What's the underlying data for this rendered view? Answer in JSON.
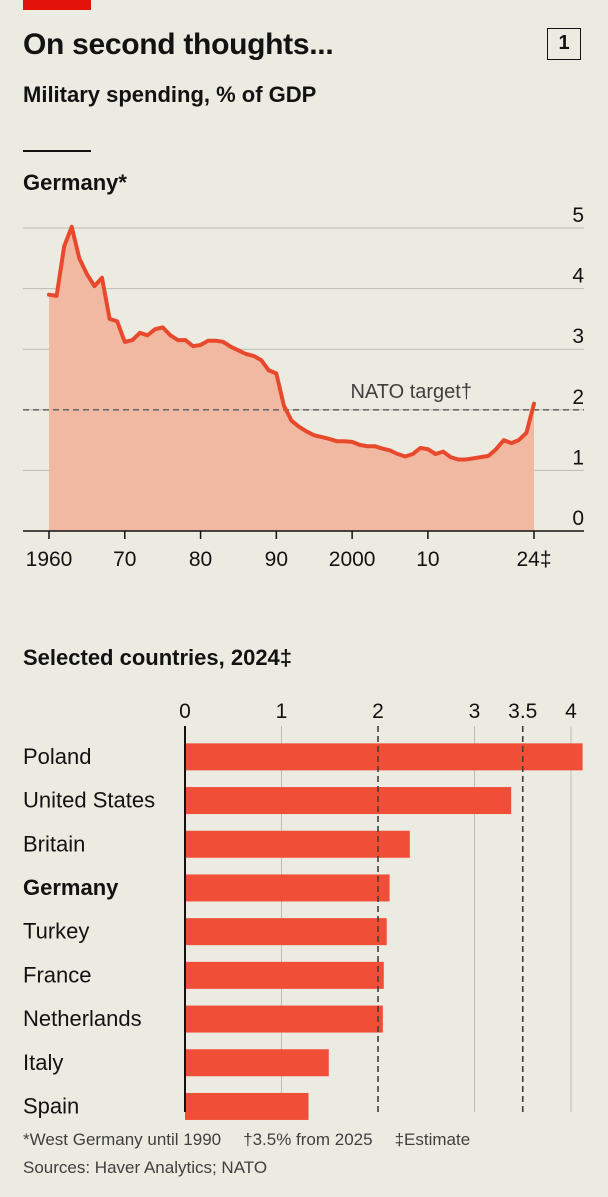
{
  "header": {
    "title": "On second thoughts...",
    "subtitle": "Military spending, % of GDP",
    "chart_number": "1"
  },
  "colors": {
    "line": "#e8492c",
    "area": "#f2b9a2",
    "bar": "#f04e37",
    "grid": "#bdbcb3",
    "brand": "#e3120b"
  },
  "chart_data": [
    {
      "type": "area",
      "title": "Germany*",
      "xlim": [
        1960,
        2024
      ],
      "ylim": [
        0,
        5
      ],
      "yticks": [
        "0",
        "1",
        "2",
        "3",
        "4",
        "5"
      ],
      "xticks": [
        {
          "value": 1960,
          "label": "1960"
        },
        {
          "value": 1970,
          "label": "70"
        },
        {
          "value": 1980,
          "label": "80"
        },
        {
          "value": 1990,
          "label": "90"
        },
        {
          "value": 2000,
          "label": "2000"
        },
        {
          "value": 2010,
          "label": "10"
        },
        {
          "value": 2024,
          "label": "24‡"
        }
      ],
      "reference_line": {
        "value": 2,
        "label": "NATO target†"
      },
      "grid": true,
      "x": [
        1960,
        1961,
        1962,
        1963,
        1964,
        1965,
        1966,
        1967,
        1968,
        1969,
        1970,
        1971,
        1972,
        1973,
        1974,
        1975,
        1976,
        1977,
        1978,
        1979,
        1980,
        1981,
        1982,
        1983,
        1984,
        1985,
        1986,
        1987,
        1988,
        1989,
        1990,
        1991,
        1992,
        1993,
        1994,
        1995,
        1996,
        1997,
        1998,
        1999,
        2000,
        2001,
        2002,
        2003,
        2004,
        2005,
        2006,
        2007,
        2008,
        2009,
        2010,
        2011,
        2012,
        2013,
        2014,
        2015,
        2016,
        2017,
        2018,
        2019,
        2020,
        2021,
        2022,
        2023,
        2024
      ],
      "values": [
        3.9,
        3.88,
        4.7,
        5.02,
        4.5,
        4.24,
        4.04,
        4.18,
        3.5,
        3.46,
        3.12,
        3.15,
        3.27,
        3.23,
        3.33,
        3.36,
        3.23,
        3.15,
        3.15,
        3.05,
        3.07,
        3.14,
        3.14,
        3.12,
        3.04,
        2.98,
        2.92,
        2.89,
        2.82,
        2.65,
        2.6,
        2.07,
        1.82,
        1.72,
        1.64,
        1.58,
        1.55,
        1.52,
        1.48,
        1.48,
        1.47,
        1.42,
        1.4,
        1.4,
        1.36,
        1.33,
        1.27,
        1.23,
        1.27,
        1.37,
        1.35,
        1.27,
        1.31,
        1.22,
        1.18,
        1.18,
        1.2,
        1.22,
        1.24,
        1.35,
        1.5,
        1.45,
        1.5,
        1.62,
        2.1
      ]
    },
    {
      "type": "bar",
      "title": "Selected countries, 2024‡",
      "xlim": [
        0,
        4.15
      ],
      "xticks": [
        "0",
        "1",
        "2",
        "3",
        "3.5",
        "4"
      ],
      "reference_lines": [
        2,
        3.5
      ],
      "categories": [
        "Poland",
        "United States",
        "Britain",
        "Germany",
        "Turkey",
        "France",
        "Netherlands",
        "Italy",
        "Spain"
      ],
      "highlight": "Germany",
      "values": [
        4.12,
        3.38,
        2.33,
        2.12,
        2.09,
        2.06,
        2.05,
        1.49,
        1.28
      ]
    }
  ],
  "footnotes": {
    "note1": "*West Germany until 1990",
    "note2": "†3.5% from 2025",
    "note3": "‡Estimate",
    "sources": "Sources: Haver Analytics; NATO"
  }
}
